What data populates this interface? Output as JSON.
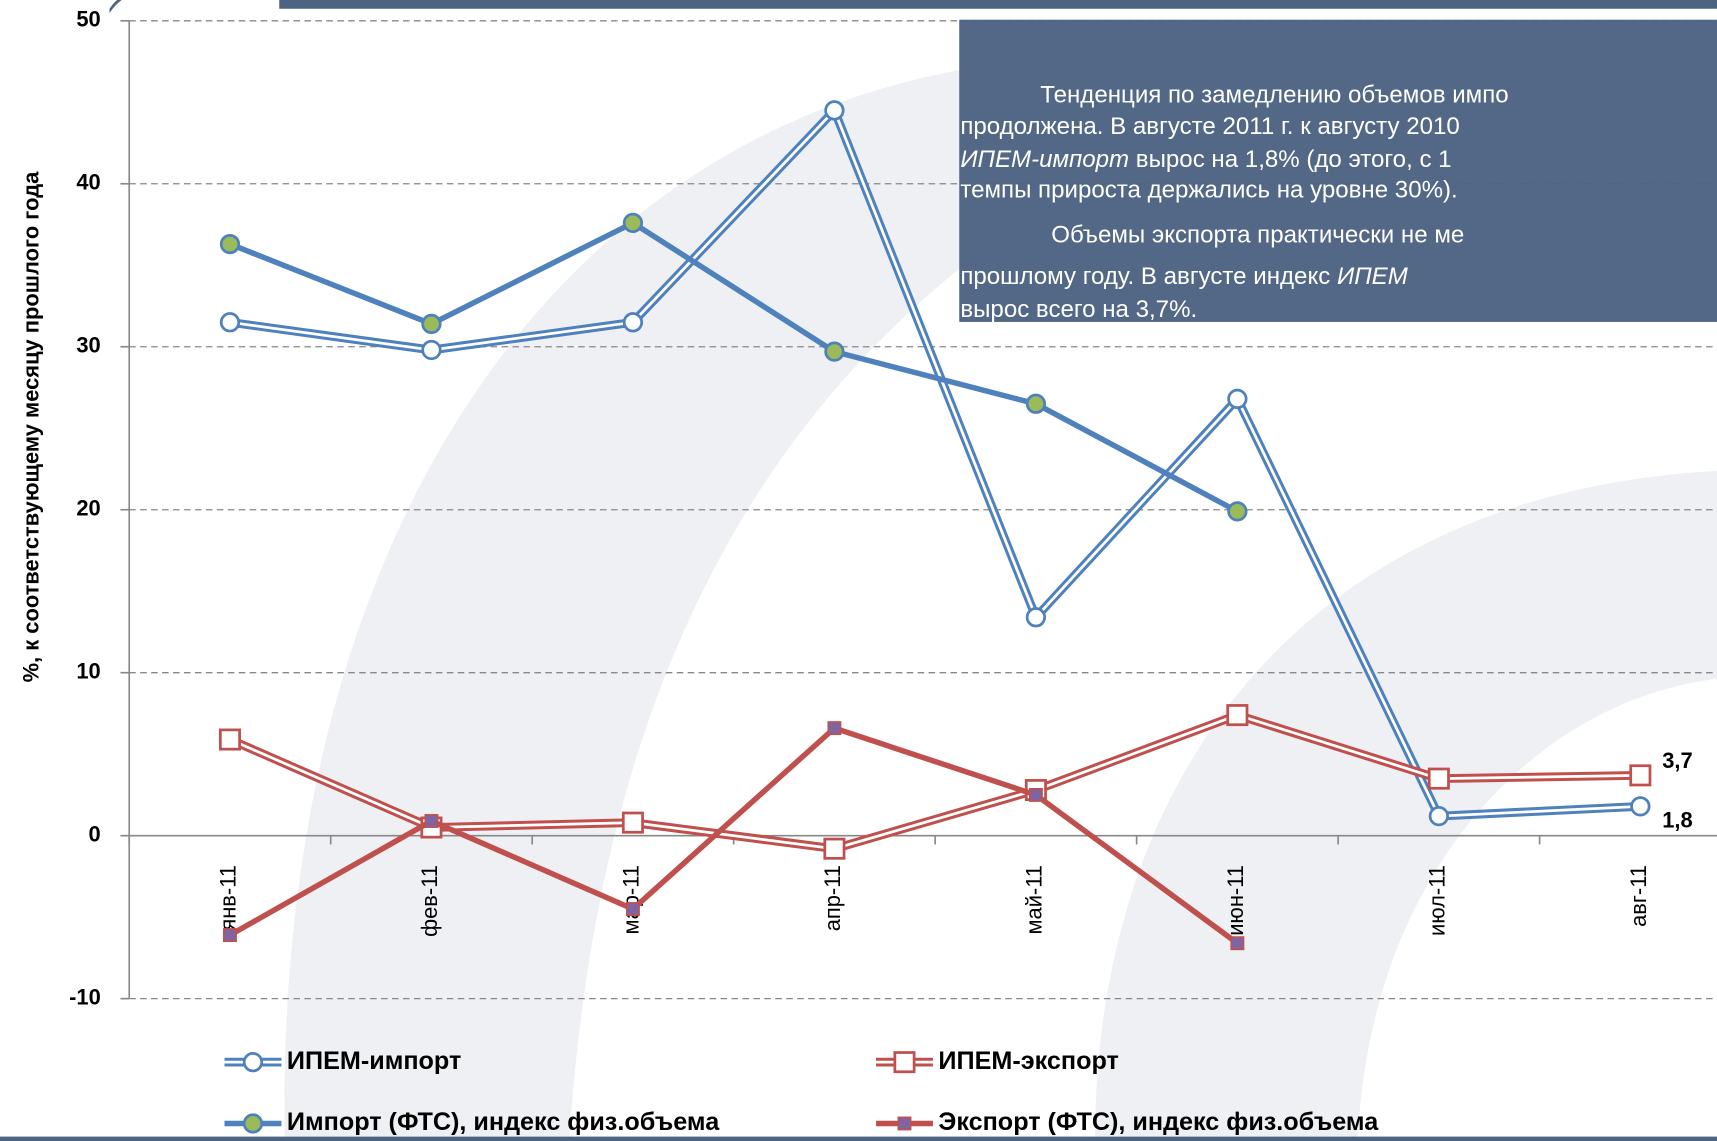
{
  "chart_data": {
    "type": "line",
    "y_label": "%, к соответствующему месяцу прошлого года",
    "categories": [
      "янв-11",
      "фев-11",
      "мар-11",
      "апр-11",
      "май-11",
      "июн-11",
      "июл-11",
      "авг-11"
    ],
    "ylim": [
      -10,
      50
    ],
    "yticks": [
      -10,
      0,
      10,
      20,
      30,
      40,
      50
    ],
    "grid": true,
    "series": [
      {
        "name": "ИПЕМ-импорт",
        "color": "#4f81bd",
        "style": "double",
        "marker": "circle-open",
        "values": [
          31.5,
          29.8,
          31.5,
          44.5,
          13.4,
          26.8,
          1.2,
          1.8
        ],
        "value_labels": [
          null,
          null,
          null,
          null,
          null,
          null,
          null,
          "1,8"
        ]
      },
      {
        "name": "ИПЕМ-экспорт",
        "color": "#c0504d",
        "style": "double",
        "marker": "square-open",
        "values": [
          5.9,
          0.5,
          0.8,
          -0.8,
          2.8,
          7.4,
          3.5,
          3.7
        ],
        "value_labels": [
          null,
          null,
          null,
          null,
          null,
          null,
          null,
          "3,7"
        ]
      },
      {
        "name": "Импорт (ФТС), индекс физ.объема",
        "color": "#4f81bd",
        "style": "solid",
        "marker": "circle-filled",
        "marker_color": "#9bbb59",
        "values": [
          36.3,
          31.4,
          37.6,
          29.7,
          26.5,
          19.9,
          null,
          null
        ]
      },
      {
        "name": "Экспорт (ФТС), индекс физ.объема",
        "color": "#c0504d",
        "style": "solid",
        "marker": "square-filled",
        "marker_color": "#8064a2",
        "values": [
          -6.1,
          0.9,
          -4.5,
          6.6,
          2.5,
          -6.6,
          null,
          null
        ]
      }
    ],
    "annotation": {
      "lines": [
        [
          {
            "text": "Тенденция по замедлению объемов импо"
          }
        ],
        [
          {
            "text": "продолжена. В августе 2011 г. к августу 2010"
          }
        ],
        [
          {
            "text": "ИПЕМ-импорт",
            "italic": true
          },
          {
            "text": " вырос на 1,8% (до этого, с 1"
          }
        ],
        [
          {
            "text": "темпы прироста держались на уровне 30%)."
          }
        ],
        [
          {
            "text": "Объемы экспорта практически не ме"
          }
        ],
        [
          {
            "text": "прошлому году. В августе индекс "
          },
          {
            "text": "ИПЕМ",
            "italic": true
          }
        ],
        [
          {
            "text": "вырос всего на 3,7%."
          }
        ]
      ]
    }
  }
}
